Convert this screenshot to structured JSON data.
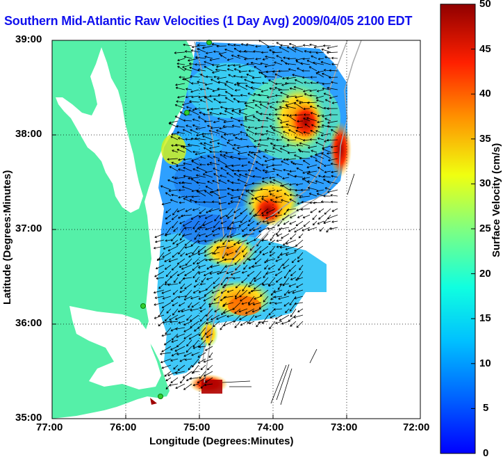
{
  "title": "Southern Mid-Atlantic Raw Velocities (1 Day Avg) 2009/04/05 2100 EDT",
  "xaxis": {
    "label": "Longitude (Degrees:Minutes)",
    "ticks": [
      "77:00",
      "76:00",
      "75:00",
      "74:00",
      "73:00",
      "72:00"
    ]
  },
  "yaxis": {
    "label": "Latitude (Degrees:Minutes)",
    "ticks": [
      "39:00",
      "38:00",
      "37:00",
      "36:00",
      "35:00"
    ]
  },
  "colorbar": {
    "label": "Surface Velocity (cm/s)",
    "ticks": [
      "50",
      "45",
      "40",
      "35",
      "30",
      "25",
      "20",
      "15",
      "10",
      "5",
      "0"
    ],
    "range": [
      0,
      50
    ]
  },
  "colors": {
    "land": "#55f0a8",
    "title": "#1010ee"
  },
  "map": {
    "lon_range": [
      -77,
      -72
    ],
    "lat_range": [
      35,
      39
    ],
    "grid": "dotted"
  }
}
